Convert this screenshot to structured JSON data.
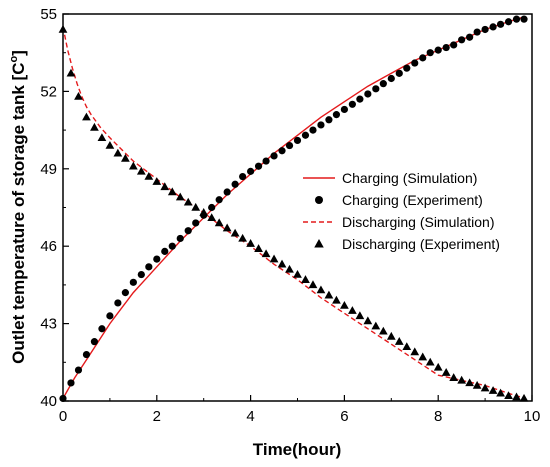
{
  "chart_data": {
    "type": "line",
    "xlabel": "Time(hour)",
    "ylabel": "Outlet temperature of storage tank [C",
    "ylabel_sup": "o",
    "ylabel_end": "]",
    "xlim": [
      0,
      10
    ],
    "ylim": [
      40,
      55
    ],
    "xticks": [
      "0",
      "2",
      "4",
      "6",
      "8",
      "10"
    ],
    "yticks": [
      "40",
      "43",
      "46",
      "49",
      "52",
      "55"
    ],
    "grid": false,
    "legend_position": "center-right",
    "series": [
      {
        "name": "Charging (Simulation)",
        "style": "solid-line",
        "color": "#e41a1c",
        "x": [
          0,
          0.25,
          0.5,
          0.75,
          1,
          1.25,
          1.5,
          1.75,
          2,
          2.5,
          3,
          3.5,
          4,
          4.5,
          5,
          5.5,
          6,
          6.5,
          7,
          7.5,
          8,
          8.5,
          9,
          9.5,
          9.85
        ],
        "y": [
          40.1,
          40.9,
          41.6,
          42.3,
          43.0,
          43.6,
          44.2,
          44.7,
          45.2,
          46.2,
          47.1,
          48.0,
          48.8,
          49.6,
          50.3,
          51.0,
          51.6,
          52.2,
          52.7,
          53.2,
          53.6,
          54.0,
          54.4,
          54.7,
          54.9
        ]
      },
      {
        "name": "Charging (Experiment)",
        "style": "circle-marker",
        "color": "#000000",
        "x": [
          0,
          0.17,
          0.33,
          0.5,
          0.67,
          0.83,
          1,
          1.17,
          1.33,
          1.5,
          1.67,
          1.83,
          2,
          2.17,
          2.33,
          2.5,
          2.67,
          2.83,
          3,
          3.17,
          3.33,
          3.5,
          3.67,
          3.83,
          4,
          4.17,
          4.33,
          4.5,
          4.67,
          4.83,
          5,
          5.17,
          5.33,
          5.5,
          5.67,
          5.83,
          6,
          6.17,
          6.33,
          6.5,
          6.67,
          6.83,
          7,
          7.17,
          7.33,
          7.5,
          7.67,
          7.83,
          8,
          8.17,
          8.33,
          8.5,
          8.67,
          8.83,
          9,
          9.17,
          9.33,
          9.5,
          9.67,
          9.83
        ],
        "y": [
          40.1,
          40.7,
          41.2,
          41.8,
          42.3,
          42.8,
          43.3,
          43.8,
          44.2,
          44.6,
          44.9,
          45.2,
          45.5,
          45.8,
          46.0,
          46.3,
          46.6,
          46.9,
          47.2,
          47.5,
          47.8,
          48.1,
          48.4,
          48.7,
          48.9,
          49.1,
          49.3,
          49.5,
          49.7,
          49.9,
          50.1,
          50.3,
          50.5,
          50.7,
          50.9,
          51.1,
          51.3,
          51.5,
          51.7,
          51.9,
          52.1,
          52.3,
          52.5,
          52.7,
          52.9,
          53.1,
          53.3,
          53.5,
          53.6,
          53.7,
          53.8,
          54.0,
          54.1,
          54.3,
          54.4,
          54.5,
          54.6,
          54.7,
          54.8,
          54.8
        ]
      },
      {
        "name": "Discharging (Simulation)",
        "style": "dashed-line",
        "color": "#e41a1c",
        "x": [
          0,
          0.1,
          0.2,
          0.3,
          0.4,
          0.5,
          0.6,
          0.8,
          1,
          1.5,
          2,
          2.5,
          3,
          3.5,
          4,
          4.5,
          5,
          5.5,
          6,
          6.5,
          7,
          7.5,
          8,
          8.5,
          9,
          9.5,
          9.85
        ],
        "y": [
          54.5,
          53.6,
          52.9,
          52.3,
          51.8,
          51.4,
          51.1,
          50.6,
          50.2,
          49.3,
          48.6,
          47.9,
          47.3,
          46.6,
          46.0,
          45.3,
          44.7,
          44.0,
          43.4,
          42.8,
          42.2,
          41.6,
          41.0,
          40.8,
          40.6,
          40.3,
          40.1
        ]
      },
      {
        "name": "Discharging (Experiment)",
        "style": "triangle-marker",
        "color": "#000000",
        "x": [
          0,
          0.17,
          0.33,
          0.5,
          0.67,
          0.83,
          1,
          1.17,
          1.33,
          1.5,
          1.67,
          1.83,
          2,
          2.17,
          2.33,
          2.5,
          2.67,
          2.83,
          3,
          3.17,
          3.33,
          3.5,
          3.67,
          3.83,
          4,
          4.17,
          4.33,
          4.5,
          4.67,
          4.83,
          5,
          5.17,
          5.33,
          5.5,
          5.67,
          5.83,
          6,
          6.17,
          6.33,
          6.5,
          6.67,
          6.83,
          7,
          7.17,
          7.33,
          7.5,
          7.67,
          7.83,
          8,
          8.17,
          8.33,
          8.5,
          8.67,
          8.83,
          9,
          9.17,
          9.33,
          9.5,
          9.67,
          9.83
        ],
        "y": [
          54.4,
          52.7,
          51.8,
          51.0,
          50.6,
          50.2,
          49.9,
          49.6,
          49.4,
          49.1,
          48.9,
          48.7,
          48.5,
          48.3,
          48.1,
          47.9,
          47.7,
          47.5,
          47.3,
          47.1,
          46.9,
          46.7,
          46.5,
          46.3,
          46.1,
          45.9,
          45.7,
          45.5,
          45.3,
          45.1,
          44.9,
          44.7,
          44.5,
          44.3,
          44.1,
          43.9,
          43.7,
          43.5,
          43.3,
          43.1,
          42.9,
          42.7,
          42.5,
          42.3,
          42.1,
          41.9,
          41.7,
          41.5,
          41.3,
          41.1,
          40.9,
          40.8,
          40.7,
          40.6,
          40.5,
          40.4,
          40.3,
          40.2,
          40.15,
          40.1
        ]
      }
    ]
  }
}
